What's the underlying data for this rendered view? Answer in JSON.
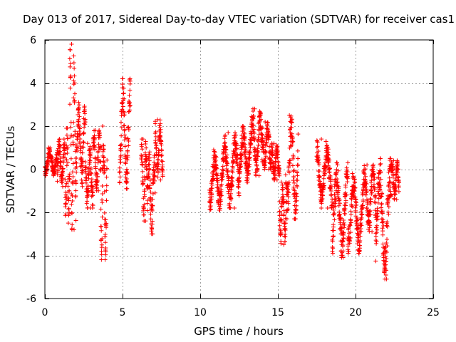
{
  "chart_data": {
    "type": "scatter",
    "title": "Day 013 of 2017, Sidereal Day-to-day VTEC variation (SDTVAR) for receiver cas1",
    "xlabel": "GPS time / hours",
    "ylabel": "SDTVAR / TECUs",
    "xlim": [
      0,
      25
    ],
    "ylim": [
      -6,
      6
    ],
    "xticks": [
      0,
      5,
      10,
      15,
      20,
      25
    ],
    "yticks": [
      -6,
      -4,
      -2,
      0,
      2,
      4,
      6
    ],
    "grid": true,
    "marker": "plus",
    "color": "#ff0000",
    "series": [
      {
        "name": "SDTVAR",
        "segments": [
          {
            "x0": 0.0,
            "x1": 0.8,
            "lo": -0.3,
            "hi": 1.0
          },
          {
            "x0": 0.8,
            "x1": 1.3,
            "lo": -0.8,
            "hi": 1.4
          },
          {
            "x0": 1.3,
            "x1": 1.6,
            "lo": -2.5,
            "hi": 1.9
          },
          {
            "x0": 1.6,
            "x1": 2.0,
            "lo": -2.8,
            "hi": 5.8
          },
          {
            "x0": 2.0,
            "x1": 2.6,
            "lo": -0.8,
            "hi": 3.1
          },
          {
            "x0": 2.6,
            "x1": 3.1,
            "lo": -1.8,
            "hi": 1.2
          },
          {
            "x0": 3.1,
            "x1": 3.6,
            "lo": -1.0,
            "hi": 1.8
          },
          {
            "x0": 3.6,
            "x1": 4.0,
            "lo": -4.2,
            "hi": 2.0
          },
          {
            "x0": 4.8,
            "x1": 5.5,
            "lo": -0.9,
            "hi": 4.2
          },
          {
            "x0": 6.2,
            "x1": 6.6,
            "lo": -2.4,
            "hi": 1.4
          },
          {
            "x0": 6.6,
            "x1": 7.1,
            "lo": -3.0,
            "hi": 0.8
          },
          {
            "x0": 7.1,
            "x1": 7.6,
            "lo": -0.5,
            "hi": 2.3
          },
          {
            "x0": 10.6,
            "x1": 11.5,
            "lo": -1.9,
            "hi": 0.9
          },
          {
            "x0": 11.5,
            "x1": 12.5,
            "lo": -1.8,
            "hi": 1.7
          },
          {
            "x0": 12.5,
            "x1": 13.3,
            "lo": -0.6,
            "hi": 2.0
          },
          {
            "x0": 13.3,
            "x1": 14.0,
            "lo": -0.3,
            "hi": 2.8
          },
          {
            "x0": 14.0,
            "x1": 14.6,
            "lo": 0.0,
            "hi": 2.2
          },
          {
            "x0": 14.6,
            "x1": 15.1,
            "lo": -0.5,
            "hi": 1.2
          },
          {
            "x0": 15.1,
            "x1": 15.5,
            "lo": -3.5,
            "hi": -0.6
          },
          {
            "x0": 15.5,
            "x1": 16.3,
            "lo": -2.3,
            "hi": 2.5
          },
          {
            "x0": 17.5,
            "x1": 18.5,
            "lo": -1.8,
            "hi": 1.4
          },
          {
            "x0": 18.5,
            "x1": 19.5,
            "lo": -4.1,
            "hi": 0.3
          },
          {
            "x0": 19.5,
            "x1": 20.5,
            "lo": -3.9,
            "hi": -0.2
          },
          {
            "x0": 20.5,
            "x1": 21.3,
            "lo": -2.9,
            "hi": 0.2
          },
          {
            "x0": 21.3,
            "x1": 22.3,
            "lo": -5.1,
            "hi": 0.5
          },
          {
            "x0": 22.3,
            "x1": 22.8,
            "lo": -1.4,
            "hi": 0.4
          }
        ]
      }
    ]
  }
}
